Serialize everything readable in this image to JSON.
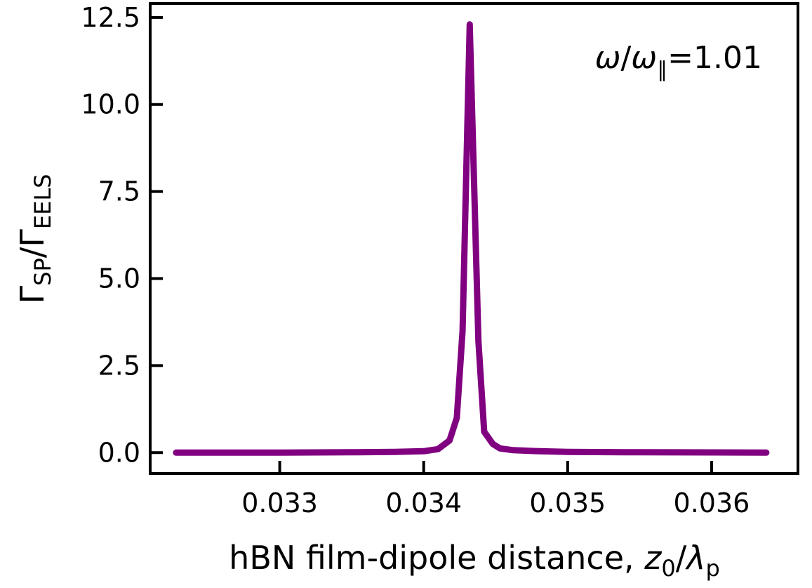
{
  "chart_data": {
    "type": "line",
    "annotation": {
      "symbol": "ω",
      "sub": "∥",
      "text": "=1.01"
    },
    "xlabel": {
      "text": "hBN film-dipole distance, ",
      "var": "z",
      "var_sub": "0",
      "slash": "/",
      "var2": "λ",
      "var2_sub": "p"
    },
    "ylabel": {
      "sym": "Γ",
      "sub1": "SP",
      "slash": "/",
      "sub2": "EELS"
    },
    "xlim": [
      0.0321,
      0.0366
    ],
    "ylim": [
      -0.6,
      12.9
    ],
    "x_ticks": [
      {
        "value": 0.033,
        "label": "0.033"
      },
      {
        "value": 0.034,
        "label": "0.034"
      },
      {
        "value": 0.035,
        "label": "0.035"
      },
      {
        "value": 0.036,
        "label": "0.036"
      }
    ],
    "y_ticks": [
      {
        "value": 0.0,
        "label": "0.0"
      },
      {
        "value": 2.5,
        "label": "2.5"
      },
      {
        "value": 5.0,
        "label": "5.0"
      },
      {
        "value": 7.5,
        "label": "7.5"
      },
      {
        "value": 10.0,
        "label": "10.0"
      },
      {
        "value": 12.5,
        "label": "12.5"
      }
    ],
    "series": [
      {
        "color": "#800080",
        "x": [
          0.03228,
          0.033,
          0.0335,
          0.0338,
          0.034,
          0.0341,
          0.03418,
          0.03423,
          0.03427,
          0.03432,
          0.03438,
          0.03442,
          0.03448,
          0.03453,
          0.03462,
          0.0348,
          0.035,
          0.0355,
          0.036,
          0.03638
        ],
        "y": [
          0.0,
          0.0,
          0.01,
          0.02,
          0.04,
          0.1,
          0.35,
          1.0,
          3.5,
          12.3,
          3.2,
          0.6,
          0.25,
          0.12,
          0.07,
          0.04,
          0.02,
          0.01,
          0.005,
          0.0
        ]
      }
    ]
  }
}
